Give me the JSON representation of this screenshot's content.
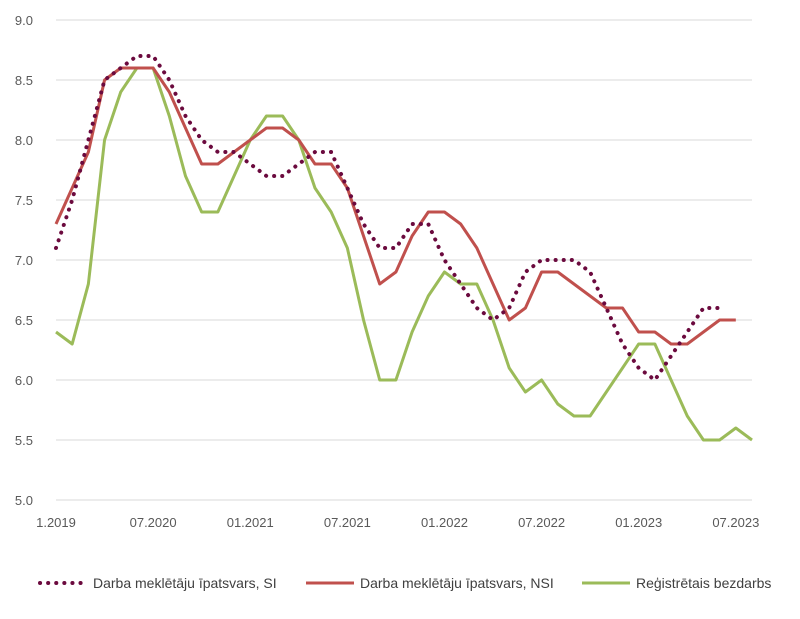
{
  "chart_data": {
    "type": "line",
    "title": "",
    "xlabel": "",
    "ylabel": "",
    "ylim": [
      5.0,
      9.0
    ],
    "yticks": [
      5.0,
      5.5,
      6.0,
      6.5,
      7.0,
      7.5,
      8.0,
      8.5,
      9.0
    ],
    "xtick_labels": [
      {
        "label": "1.2019",
        "index": 0
      },
      {
        "label": "07.2020",
        "index": 6
      },
      {
        "label": "01.2021",
        "index": 12
      },
      {
        "label": "07.2021",
        "index": 18
      },
      {
        "label": "01.2022",
        "index": 24
      },
      {
        "label": "07.2022",
        "index": 30
      },
      {
        "label": "01.2023",
        "index": 36
      },
      {
        "label": "07.2023",
        "index": 42
      }
    ],
    "grid": "horizontal",
    "legend_position": "bottom",
    "colors": {
      "si": "#6b0a3e",
      "nsi": "#c0504d",
      "reg": "#9bbb59",
      "grid": "#d9d9d9",
      "axis_text": "#595959"
    },
    "series": [
      {
        "name": "Darba meklētāju īpatsvars, SI",
        "key": "si",
        "style": "dotted",
        "values": [
          7.1,
          7.5,
          8.0,
          8.5,
          8.6,
          8.7,
          8.7,
          8.5,
          8.2,
          8.0,
          7.9,
          7.9,
          7.8,
          7.7,
          7.7,
          7.8,
          7.9,
          7.9,
          7.6,
          7.3,
          7.1,
          7.1,
          7.3,
          7.3,
          7.0,
          6.8,
          6.6,
          6.5,
          6.6,
          6.9,
          7.0,
          7.0,
          7.0,
          6.9,
          6.6,
          6.3,
          6.1,
          6.0,
          6.2,
          6.4,
          6.6,
          6.6
        ]
      },
      {
        "name": "Darba meklētāju īpatsvars, NSI",
        "key": "nsi",
        "style": "solid",
        "values": [
          7.3,
          7.6,
          7.9,
          8.5,
          8.6,
          8.6,
          8.6,
          8.4,
          8.1,
          7.8,
          7.8,
          7.9,
          8.0,
          8.1,
          8.1,
          8.0,
          7.8,
          7.8,
          7.6,
          7.2,
          6.8,
          6.9,
          7.2,
          7.4,
          7.4,
          7.3,
          7.1,
          6.8,
          6.5,
          6.6,
          6.9,
          6.9,
          6.8,
          6.7,
          6.6,
          6.6,
          6.4,
          6.4,
          6.3,
          6.3,
          6.4,
          6.5,
          6.5
        ]
      },
      {
        "name": "Reģistrētais bezdarbs",
        "key": "reg",
        "style": "solid",
        "values": [
          6.4,
          6.3,
          6.8,
          8.0,
          8.4,
          8.6,
          8.6,
          8.2,
          7.7,
          7.4,
          7.4,
          7.7,
          8.0,
          8.2,
          8.2,
          8.0,
          7.6,
          7.4,
          7.1,
          6.5,
          6.0,
          6.0,
          6.4,
          6.7,
          6.9,
          6.8,
          6.8,
          6.5,
          6.1,
          5.9,
          6.0,
          5.8,
          5.7,
          5.7,
          5.9,
          6.1,
          6.3,
          6.3,
          6.0,
          5.7,
          5.5,
          5.5,
          5.6,
          5.5
        ]
      }
    ]
  }
}
